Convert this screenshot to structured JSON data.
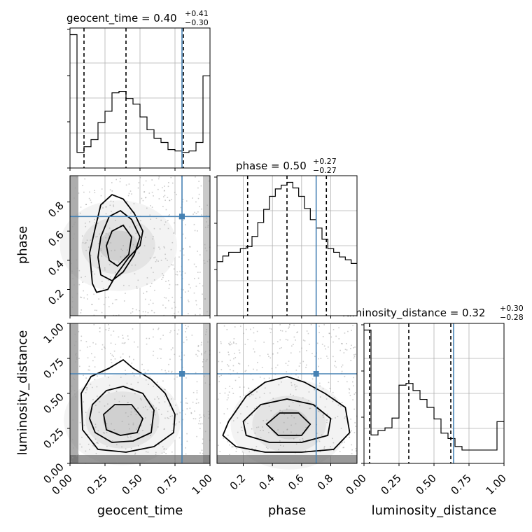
{
  "chart_data": {
    "type": "corner",
    "parameters": [
      "geocent_time",
      "phase",
      "luminosity_distance"
    ],
    "truths": {
      "geocent_time": 0.8,
      "phase": 0.7,
      "luminosity_distance": 0.64
    },
    "titles": [
      {
        "parameter": "geocent_time",
        "prefix": "geocent_time = 0.40",
        "plus": "+0.41",
        "minus": "−0.30"
      },
      {
        "parameter": "phase",
        "prefix": "phase = 0.50",
        "plus": "+0.27",
        "minus": "−0.27"
      },
      {
        "parameter": "luminosity_distance",
        "prefix": "luminosity_distance = 0.32",
        "plus": "+0.30",
        "minus": "−0.28"
      }
    ],
    "axis_labels": {
      "geocent_time": "geocent_time",
      "phase": "phase",
      "luminosity_distance": "luminosity_distance"
    },
    "ranges": {
      "geocent_time": [
        0,
        1
      ],
      "phase": [
        0.02,
        0.98
      ],
      "luminosity_distance": [
        0,
        1
      ]
    },
    "ticks": {
      "geocent_time": [
        "0.00",
        "0.25",
        "0.50",
        "0.75",
        "1.00"
      ],
      "phase": [
        "0.2",
        "0.4",
        "0.6",
        "0.8"
      ],
      "luminosity_distance": [
        "0.00",
        "0.25",
        "0.50",
        "0.75",
        "1.00"
      ]
    },
    "histograms": [
      {
        "parameter": "geocent_time",
        "quantiles": [
          0.1,
          0.4,
          0.81
        ],
        "bins": [
          0,
          0.05,
          0.1,
          0.15,
          0.2,
          0.25,
          0.3,
          0.35,
          0.4,
          0.45,
          0.5,
          0.55,
          0.6,
          0.65,
          0.7,
          0.75,
          0.8,
          0.85,
          0.9,
          0.95,
          1.0
        ],
        "counts": [
          94,
          11,
          15,
          20,
          32,
          40,
          53,
          54,
          49,
          45,
          36,
          27,
          21,
          18,
          13,
          12,
          11,
          12,
          18,
          65
        ]
      },
      {
        "parameter": "phase",
        "quantiles": [
          0.23,
          0.5,
          0.77
        ],
        "bins": [
          0.02,
          0.06,
          0.1,
          0.14,
          0.18,
          0.22,
          0.26,
          0.3,
          0.34,
          0.38,
          0.42,
          0.46,
          0.5,
          0.54,
          0.58,
          0.62,
          0.66,
          0.7,
          0.74,
          0.78,
          0.82,
          0.86,
          0.9,
          0.94,
          0.98
        ],
        "counts": [
          58,
          64,
          68,
          68,
          72,
          74,
          85,
          100,
          114,
          128,
          136,
          140,
          143,
          137,
          128,
          115,
          103,
          94,
          82,
          72,
          68,
          63,
          60,
          56
        ]
      },
      {
        "parameter": "luminosity_distance",
        "quantiles": [
          0.04,
          0.32,
          0.62
        ],
        "bins": [
          0,
          0.05,
          0.1,
          0.15,
          0.2,
          0.25,
          0.3,
          0.35,
          0.4,
          0.45,
          0.5,
          0.55,
          0.6,
          0.65,
          0.7,
          0.75,
          0.8,
          0.85,
          0.9,
          0.95,
          1.0
        ],
        "counts": [
          150,
          32,
          37,
          40,
          51,
          88,
          90,
          82,
          72,
          63,
          50,
          34,
          28,
          19,
          15,
          15,
          15,
          15,
          15,
          47
        ]
      }
    ],
    "contours_2d": [
      {
        "x": "geocent_time",
        "y": "phase",
        "levels": [
          [
            [
              0.16,
              0.24
            ],
            [
              0.19,
              0.18
            ],
            [
              0.27,
              0.2
            ],
            [
              0.33,
              0.3
            ],
            [
              0.42,
              0.42
            ],
            [
              0.5,
              0.5
            ],
            [
              0.52,
              0.6
            ],
            [
              0.46,
              0.72
            ],
            [
              0.38,
              0.82
            ],
            [
              0.3,
              0.85
            ],
            [
              0.22,
              0.78
            ],
            [
              0.18,
              0.62
            ],
            [
              0.14,
              0.45
            ]
          ],
          [
            [
              0.22,
              0.3
            ],
            [
              0.3,
              0.26
            ],
            [
              0.38,
              0.32
            ],
            [
              0.46,
              0.44
            ],
            [
              0.5,
              0.56
            ],
            [
              0.44,
              0.68
            ],
            [
              0.36,
              0.74
            ],
            [
              0.28,
              0.7
            ],
            [
              0.22,
              0.56
            ],
            [
              0.2,
              0.42
            ]
          ],
          [
            [
              0.28,
              0.4
            ],
            [
              0.34,
              0.36
            ],
            [
              0.42,
              0.44
            ],
            [
              0.44,
              0.56
            ],
            [
              0.38,
              0.64
            ],
            [
              0.3,
              0.6
            ],
            [
              0.26,
              0.5
            ]
          ]
        ]
      },
      {
        "x": "geocent_time",
        "y": "luminosity_distance",
        "levels": [
          [
            [
              0.08,
              0.5
            ],
            [
              0.15,
              0.62
            ],
            [
              0.28,
              0.68
            ],
            [
              0.38,
              0.74
            ],
            [
              0.45,
              0.68
            ],
            [
              0.58,
              0.6
            ],
            [
              0.68,
              0.5
            ],
            [
              0.75,
              0.35
            ],
            [
              0.74,
              0.22
            ],
            [
              0.6,
              0.12
            ],
            [
              0.4,
              0.08
            ],
            [
              0.2,
              0.1
            ],
            [
              0.09,
              0.24
            ]
          ],
          [
            [
              0.16,
              0.42
            ],
            [
              0.26,
              0.52
            ],
            [
              0.38,
              0.55
            ],
            [
              0.52,
              0.5
            ],
            [
              0.6,
              0.38
            ],
            [
              0.58,
              0.22
            ],
            [
              0.45,
              0.16
            ],
            [
              0.3,
              0.15
            ],
            [
              0.18,
              0.22
            ],
            [
              0.14,
              0.32
            ]
          ],
          [
            [
              0.24,
              0.35
            ],
            [
              0.32,
              0.42
            ],
            [
              0.44,
              0.42
            ],
            [
              0.52,
              0.32
            ],
            [
              0.48,
              0.22
            ],
            [
              0.36,
              0.2
            ],
            [
              0.26,
              0.24
            ]
          ]
        ]
      },
      {
        "x": "phase",
        "y": "luminosity_distance",
        "levels": [
          [
            [
              0.1,
              0.3
            ],
            [
              0.22,
              0.48
            ],
            [
              0.35,
              0.58
            ],
            [
              0.5,
              0.62
            ],
            [
              0.62,
              0.58
            ],
            [
              0.76,
              0.5
            ],
            [
              0.9,
              0.4
            ],
            [
              0.93,
              0.22
            ],
            [
              0.82,
              0.1
            ],
            [
              0.6,
              0.08
            ],
            [
              0.35,
              0.08
            ],
            [
              0.15,
              0.12
            ],
            [
              0.06,
              0.2
            ]
          ],
          [
            [
              0.2,
              0.3
            ],
            [
              0.32,
              0.42
            ],
            [
              0.5,
              0.46
            ],
            [
              0.68,
              0.42
            ],
            [
              0.8,
              0.32
            ],
            [
              0.78,
              0.2
            ],
            [
              0.6,
              0.15
            ],
            [
              0.38,
              0.15
            ],
            [
              0.22,
              0.2
            ]
          ],
          [
            [
              0.36,
              0.28
            ],
            [
              0.45,
              0.36
            ],
            [
              0.58,
              0.36
            ],
            [
              0.66,
              0.28
            ],
            [
              0.6,
              0.2
            ],
            [
              0.44,
              0.2
            ]
          ]
        ]
      }
    ],
    "colors": {
      "truth": "#4682b4",
      "line": "#000000",
      "grid": "#b0b0b0",
      "density": "#000000"
    }
  }
}
